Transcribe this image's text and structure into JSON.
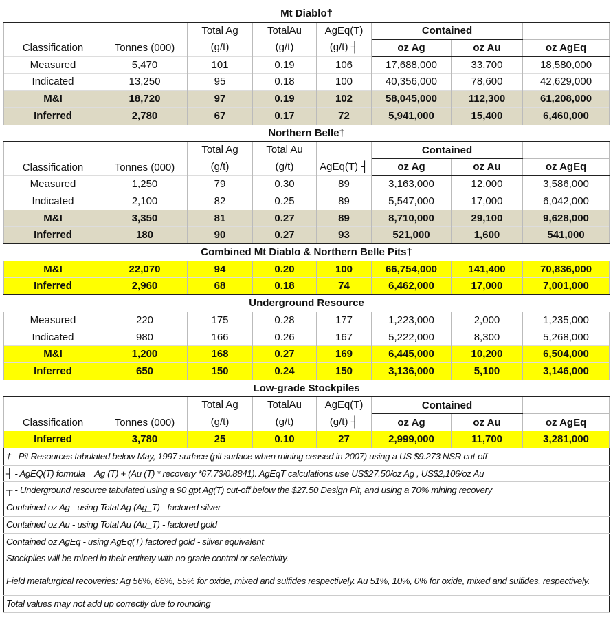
{
  "columns": {
    "classification": "Classification",
    "tonnes": "Tonnes (000)",
    "total_ag_1": "Total Ag",
    "total_au_1a": "TotalAu",
    "total_au_1b": "Total Au",
    "unit": "(g/t)",
    "ageq_1": "AgEq(T)",
    "ageq_unit": "(g/t) ┤",
    "ageq_single": "AgEq(T) ┤",
    "contained": "Contained",
    "oz_ag": "oz Ag",
    "oz_au": "oz Au",
    "oz_ageq": "oz AgEq"
  },
  "sections": [
    {
      "title": "Mt Diablo†",
      "header": "A",
      "rows": [
        {
          "style": "plain",
          "cells": [
            "Measured",
            "5,470",
            "101",
            "0.19",
            "106",
            "17,688,000",
            "33,700",
            "18,580,000"
          ]
        },
        {
          "style": "plain",
          "cells": [
            "Indicated",
            "13,250",
            "95",
            "0.18",
            "100",
            "40,356,000",
            "78,600",
            "42,629,000"
          ]
        },
        {
          "style": "beige",
          "cells": [
            "M&I",
            "18,720",
            "97",
            "0.19",
            "102",
            "58,045,000",
            "112,300",
            "61,208,000"
          ]
        },
        {
          "style": "beige",
          "cells": [
            "Inferred",
            "2,780",
            "67",
            "0.17",
            "72",
            "5,941,000",
            "15,400",
            "6,460,000"
          ]
        }
      ]
    },
    {
      "title": "Northern Belle†",
      "header": "B",
      "rows": [
        {
          "style": "plain",
          "cells": [
            "Measured",
            "1,250",
            "79",
            "0.30",
            "89",
            "3,163,000",
            "12,000",
            "3,586,000"
          ]
        },
        {
          "style": "plain",
          "cells": [
            "Indicated",
            "2,100",
            "82",
            "0.25",
            "89",
            "5,547,000",
            "17,000",
            "6,042,000"
          ]
        },
        {
          "style": "beige",
          "cells": [
            "M&I",
            "3,350",
            "81",
            "0.27",
            "89",
            "8,710,000",
            "29,100",
            "9,628,000"
          ]
        },
        {
          "style": "beige",
          "cells": [
            "Inferred",
            "180",
            "90",
            "0.27",
            "93",
            "521,000",
            "1,600",
            "541,000"
          ]
        }
      ]
    },
    {
      "title": "Combined Mt Diablo & Northern Belle Pits†",
      "header": "none",
      "rows": [
        {
          "style": "yellow",
          "cells": [
            "M&I",
            "22,070",
            "94",
            "0.20",
            "100",
            "66,754,000",
            "141,400",
            "70,836,000"
          ]
        },
        {
          "style": "yellow",
          "cells": [
            "Inferred",
            "2,960",
            "68",
            "0.18",
            "74",
            "6,462,000",
            "17,000",
            "7,001,000"
          ]
        }
      ]
    },
    {
      "title": "Underground Resource",
      "header": "none",
      "rows": [
        {
          "style": "plain",
          "cells": [
            "Measured",
            "220",
            "175",
            "0.28",
            "177",
            "1,223,000",
            "2,000",
            "1,235,000"
          ]
        },
        {
          "style": "plain",
          "cells": [
            "Indicated",
            "980",
            "166",
            "0.26",
            "167",
            "5,222,000",
            "8,300",
            "5,268,000"
          ]
        },
        {
          "style": "yellow",
          "cells": [
            "M&I",
            "1,200",
            "168",
            "0.27",
            "169",
            "6,445,000",
            "10,200",
            "6,504,000"
          ]
        },
        {
          "style": "yellow",
          "cells": [
            "Inferred",
            "650",
            "150",
            "0.24",
            "150",
            "3,136,000",
            "5,100",
            "3,146,000"
          ]
        }
      ]
    },
    {
      "title": "Low-grade Stockpiles",
      "header": "C",
      "rows": [
        {
          "style": "yellow",
          "cells": [
            "Inferred",
            "3,780",
            "25",
            "0.10",
            "27",
            "2,999,000",
            "11,700",
            "3,281,000"
          ]
        }
      ]
    }
  ],
  "footnotes": [
    "† - Pit Resources tabulated below May, 1997 surface (pit surface when mining ceased in 2007) using a US $9.273 NSR cut-off",
    "┤ - AgEQ(T) formula = Ag (T) + (Au (T) * recovery *67.73/0.8841).  AgEqT calculations use US$27.50/oz Ag , US$2,106/oz Au",
    "┬ - Underground resource tabulated using a 90 gpt Ag(T) cut-off below the $27.50 Design Pit, and using a 70% mining recovery",
    "Contained oz Ag - using Total Ag (Ag_T) - factored silver",
    "Contained oz Au - using Total Au (Au_T) - factored gold",
    "Contained oz AgEq - using AgEq(T) factored gold - silver equivalent",
    "Stockpiles will be mined in their entirety with no grade control or selectivity.",
    "Field metalurgical recoveries: Ag  56%, 66%, 55% for oxide, mixed and sulfides respectively.  Au  51%, 10%, 0% for oxide, mixed and sulfides, respectively.",
    "Total values may not add up correctly due to rounding"
  ]
}
